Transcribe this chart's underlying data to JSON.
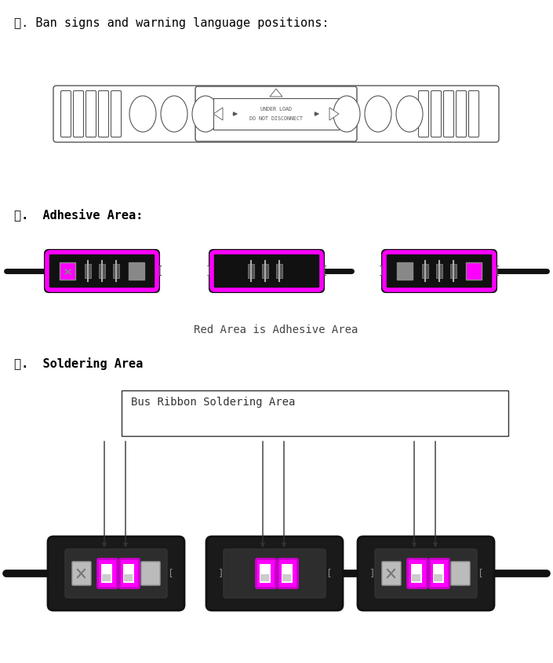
{
  "title1": "五. Ban signs and warning language positions:",
  "title2": "六.  Adhesive Area:",
  "title3": "七.  Soldering Area",
  "label_adhesive": "Red Area is Adhesive Area",
  "label_soldering": "Bus Ribbon Soldering Area",
  "bg_color": "#ffffff",
  "magenta": "#FF00FF",
  "dark_gray": "#333333",
  "mid_gray": "#666666",
  "light_gray": "#999999",
  "black": "#000000",
  "text_color": "#333333"
}
